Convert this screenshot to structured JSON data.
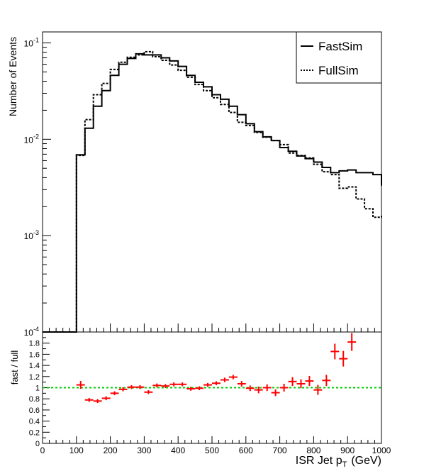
{
  "chart_data": [
    {
      "type": "line",
      "panel": "main",
      "ylabel": "Number of Events",
      "xlim": [
        0,
        1000
      ],
      "ylim": [
        0.0001,
        0.13
      ],
      "yscale": "log",
      "grid": false,
      "legend_placement": "top-right",
      "y_ticks": [
        {
          "value": 0.1,
          "base": "10",
          "exp": "-1"
        },
        {
          "value": 0.01,
          "base": "10",
          "exp": "-2"
        },
        {
          "value": 0.001,
          "base": "10",
          "exp": "-3"
        },
        {
          "value": 0.0001,
          "base": "10",
          "exp": "-4"
        }
      ],
      "x_edges": [
        0,
        25,
        50,
        75,
        100,
        125,
        150,
        175,
        200,
        225,
        250,
        275,
        300,
        325,
        350,
        375,
        400,
        425,
        450,
        475,
        500,
        525,
        550,
        575,
        600,
        625,
        650,
        675,
        700,
        725,
        750,
        775,
        800,
        825,
        850,
        875,
        900,
        925,
        950,
        975,
        1000
      ],
      "series": [
        {
          "name": "FastSim",
          "style": "solid",
          "color": "#000000",
          "values": [
            0.0001,
            0.0001,
            0.0001,
            0.0001,
            0.0069,
            0.013,
            0.022,
            0.032,
            0.046,
            0.06,
            0.069,
            0.077,
            0.075,
            0.075,
            0.07,
            0.065,
            0.057,
            0.046,
            0.039,
            0.035,
            0.029,
            0.026,
            0.022,
            0.018,
            0.0145,
            0.012,
            0.0106,
            0.0097,
            0.0082,
            0.0075,
            0.0067,
            0.0063,
            0.0058,
            0.0051,
            0.0045,
            0.0047,
            0.0048,
            0.0045,
            0.0045,
            0.0043,
            0.0033
          ]
        },
        {
          "name": "FullSim",
          "style": "dotted",
          "color": "#000000",
          "values": [
            0.0001,
            0.0001,
            0.0001,
            0.0001,
            0.0068,
            0.016,
            0.029,
            0.038,
            0.053,
            0.063,
            0.071,
            0.075,
            0.081,
            0.072,
            0.066,
            0.059,
            0.052,
            0.044,
            0.037,
            0.032,
            0.027,
            0.023,
            0.019,
            0.015,
            0.0139,
            0.0118,
            0.0105,
            0.0097,
            0.0088,
            0.0072,
            0.0068,
            0.0064,
            0.0055,
            0.0046,
            0.0043,
            0.0031,
            0.0032,
            0.0024,
            0.0019,
            0.00155,
            0.0016
          ]
        }
      ]
    },
    {
      "type": "scatter",
      "panel": "ratio",
      "xlabel": "ISR Jet p",
      "xlabel_sub": "T",
      "xlabel_unit": "(GeV)",
      "ylabel": "fast / full",
      "xlim": [
        0,
        1000
      ],
      "ylim": [
        0,
        2
      ],
      "grid": false,
      "x_ticks": [
        0,
        100,
        200,
        300,
        400,
        500,
        600,
        700,
        800,
        900,
        1000
      ],
      "y_ticks": [
        0,
        0.2,
        0.4,
        0.6,
        0.8,
        1,
        1.2,
        1.4,
        1.6,
        1.8
      ],
      "reference_line": {
        "y": 1,
        "color": "#00cc00",
        "style": "dashed"
      },
      "series": [
        {
          "color": "#ff0000",
          "x": [
            112.5,
            137.5,
            162.5,
            187.5,
            212.5,
            237.5,
            262.5,
            287.5,
            312.5,
            337.5,
            362.5,
            387.5,
            412.5,
            437.5,
            462.5,
            487.5,
            512.5,
            537.5,
            562.5,
            587.5,
            612.5,
            637.5,
            662.5,
            687.5,
            712.5,
            737.5,
            762.5,
            787.5,
            812.5,
            837.5,
            862.5,
            887.5,
            912.5
          ],
          "y": [
            1.05,
            0.78,
            0.76,
            0.81,
            0.9,
            0.97,
            1.01,
            1.01,
            0.92,
            1.04,
            1.03,
            1.06,
            1.06,
            0.98,
            0.99,
            1.05,
            1.08,
            1.14,
            1.19,
            1.07,
            0.99,
            0.96,
            1.0,
            0.91,
            1.0,
            1.11,
            1.07,
            1.12,
            0.96,
            1.13,
            1.65,
            1.52,
            1.82
          ],
          "err": [
            0.07,
            0.03,
            0.02,
            0.02,
            0.02,
            0.02,
            0.02,
            0.01,
            0.02,
            0.02,
            0.02,
            0.02,
            0.02,
            0.02,
            0.02,
            0.03,
            0.03,
            0.04,
            0.04,
            0.05,
            0.05,
            0.06,
            0.06,
            0.06,
            0.07,
            0.08,
            0.08,
            0.09,
            0.09,
            0.1,
            0.14,
            0.14,
            0.16
          ]
        }
      ]
    }
  ]
}
